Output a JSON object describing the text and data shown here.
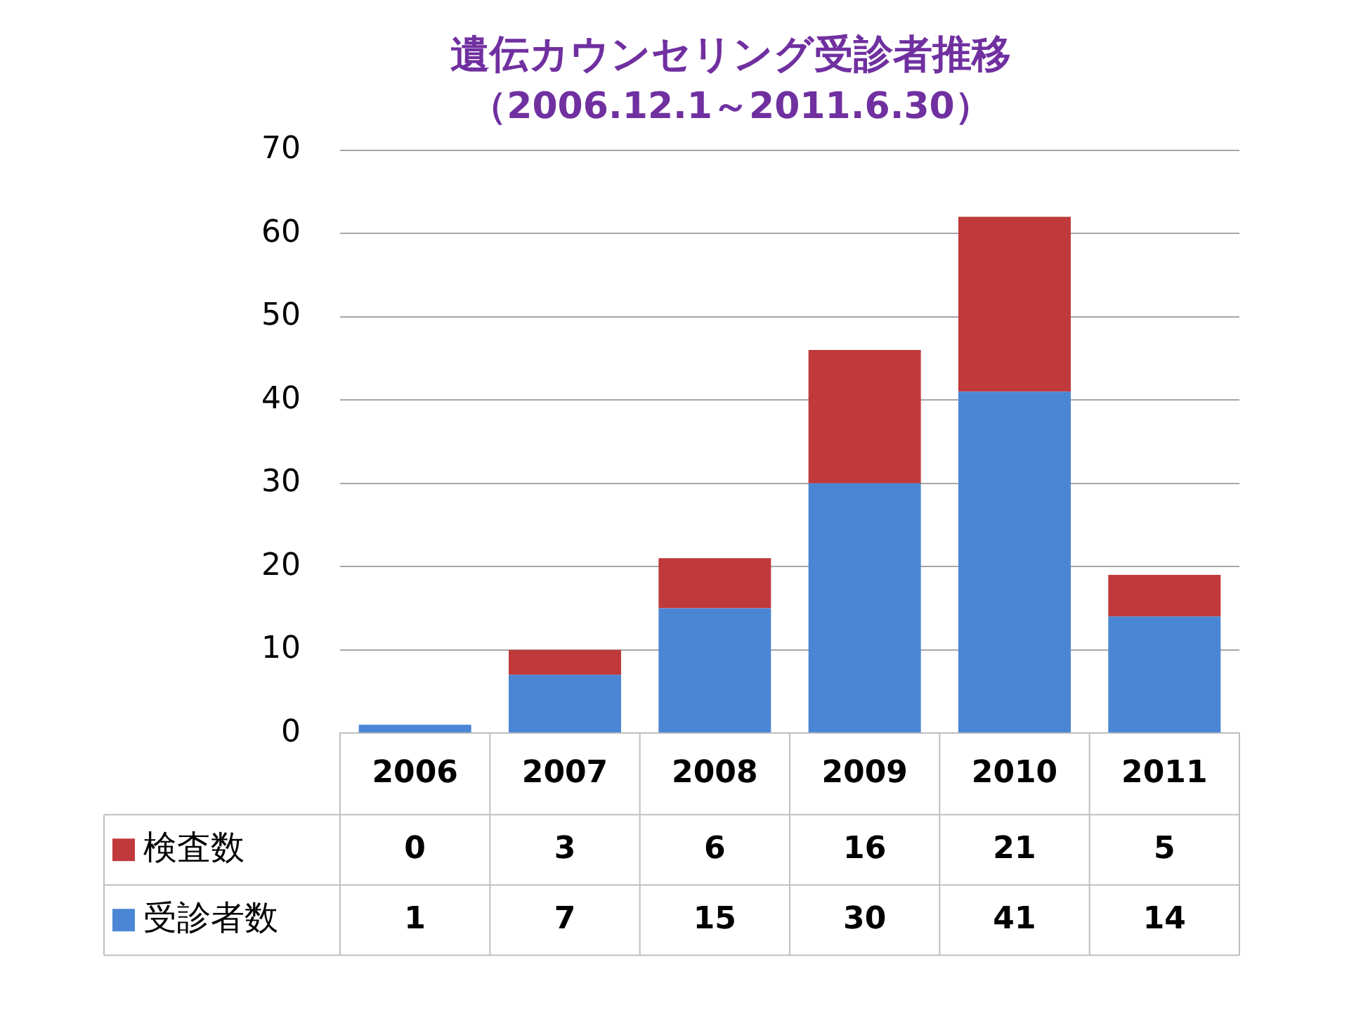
{
  "chart_data": {
    "type": "bar",
    "title": "遺伝カウンセリング受診者推移",
    "subtitle": "（2006.12.1～2011.6.30）",
    "categories": [
      "2006",
      "2007",
      "2008",
      "2009",
      "2010",
      "2011"
    ],
    "stacked": true,
    "series": [
      {
        "name": "受診者数",
        "color": "#4a86d4",
        "values": [
          1,
          7,
          15,
          30,
          41,
          14
        ]
      },
      {
        "name": "検査数",
        "color": "#c0393b",
        "values": [
          0,
          3,
          6,
          16,
          21,
          5
        ]
      }
    ],
    "ylim": [
      0,
      70
    ],
    "yticks": [
      0,
      10,
      20,
      30,
      40,
      50,
      60,
      70
    ],
    "grid": "y",
    "data_labels": true,
    "legend": "bottom"
  }
}
